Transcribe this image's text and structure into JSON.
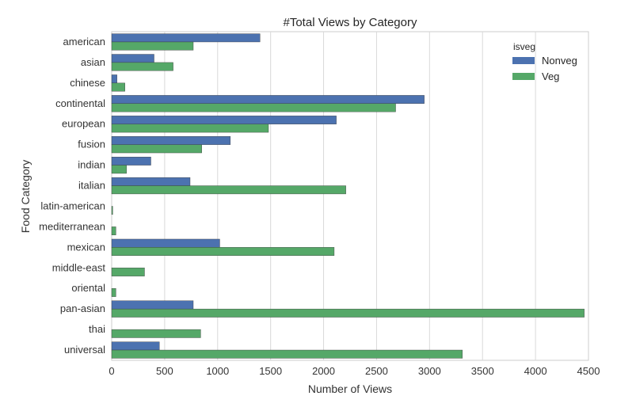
{
  "chart_data": {
    "type": "bar",
    "orientation": "horizontal",
    "title": "#Total Views by Category",
    "xlabel": "Number of Views",
    "ylabel": "Food Category",
    "xlim": [
      0,
      4500
    ],
    "xticks": [
      "0",
      "500",
      "1000",
      "1500",
      "2000",
      "2500",
      "3000",
      "3500",
      "4000",
      "4500"
    ],
    "grid": "vertical",
    "legend": {
      "title": "isveg",
      "placement": "top-right"
    },
    "categories": [
      "american",
      "asian",
      "chinese",
      "continental",
      "european",
      "fusion",
      "indian",
      "italian",
      "latin-american",
      "mediterranean",
      "mexican",
      "middle-east",
      "oriental",
      "pan-asian",
      "thai",
      "universal"
    ],
    "series": [
      {
        "name": "Nonveg",
        "color": "#4c72b0",
        "values": [
          1400,
          400,
          50,
          2950,
          2120,
          1120,
          370,
          740,
          0,
          0,
          1020,
          0,
          0,
          770,
          0,
          450
        ]
      },
      {
        "name": "Veg",
        "color": "#55a868",
        "values": [
          770,
          580,
          125,
          2680,
          1480,
          850,
          140,
          2210,
          10,
          40,
          2100,
          310,
          40,
          4460,
          840,
          3310
        ]
      }
    ]
  }
}
